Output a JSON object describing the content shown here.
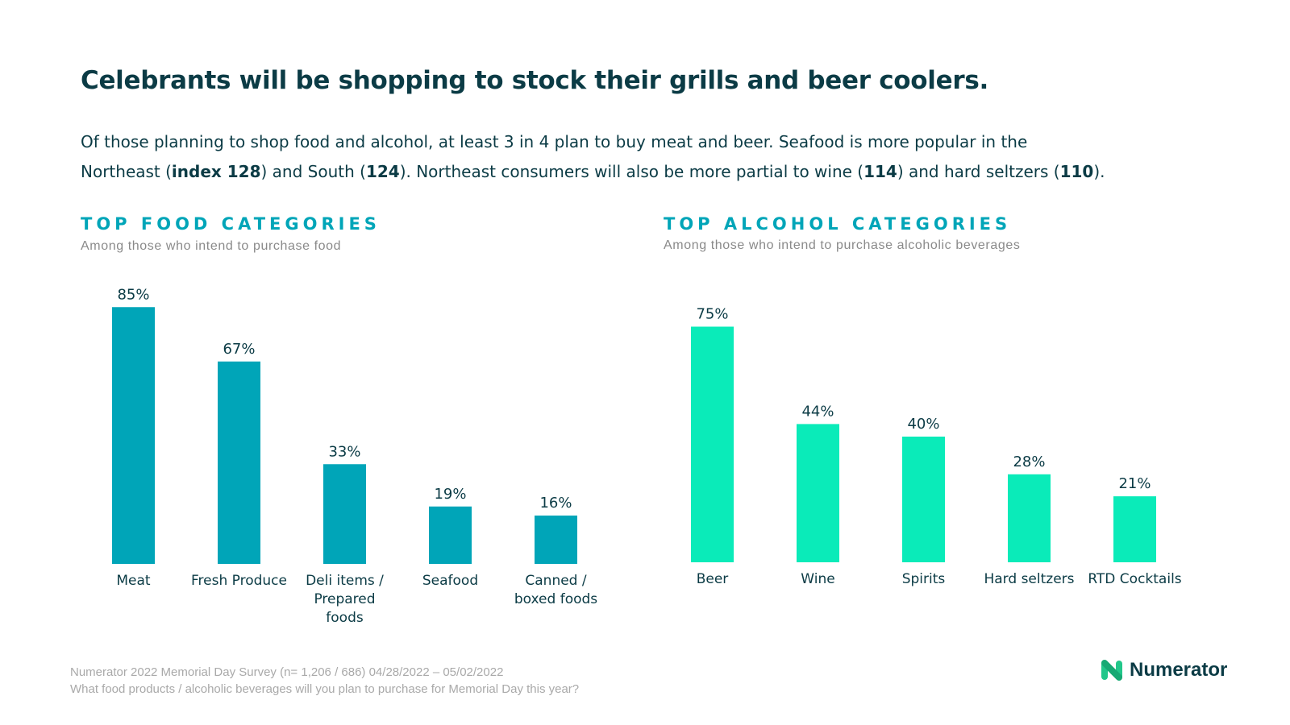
{
  "title": "Celebrants will be shopping to stock their grills and beer coolers.",
  "subtitle": {
    "line1": "Of those planning to shop food and alcohol, at least 3 in 4 plan to buy meat and beer. Seafood is more popular in the",
    "line2_a": "Northeast (",
    "line2_b": "index 128",
    "line2_c": ") and South (",
    "line2_d": "124",
    "line2_e": "). Northeast consumers will also be more partial to wine (",
    "line2_f": "114",
    "line2_g": ") and hard seltzers (",
    "line2_h": "110",
    "line2_i": ")."
  },
  "colors": {
    "food": "#00a5b8",
    "alcohol": "#0aebb9",
    "heading": "#0b3b45"
  },
  "chart_data": [
    {
      "type": "bar",
      "title": "TOP FOOD CATEGORIES",
      "subtitle": "Among those who intend to purchase food",
      "categories": [
        "Meat",
        "Fresh Produce",
        "Deli items / Prepared foods",
        "Seafood",
        "Canned / boxed foods"
      ],
      "category_lines": [
        [
          "Meat"
        ],
        [
          "Fresh Produce"
        ],
        [
          "Deli items /",
          "Prepared",
          "foods"
        ],
        [
          "Seafood"
        ],
        [
          "Canned /",
          "boxed foods"
        ]
      ],
      "values": [
        85,
        67,
        33,
        19,
        16
      ],
      "value_labels": [
        "85%",
        "67%",
        "33%",
        "19%",
        "16%"
      ],
      "unit": "%",
      "ylim": [
        0,
        100
      ],
      "grid": false,
      "color": "#00a5b8"
    },
    {
      "type": "bar",
      "title": "TOP ALCOHOL CATEGORIES",
      "subtitle": "Among those who intend to purchase alcoholic beverages",
      "categories": [
        "Beer",
        "Wine",
        "Spirits",
        "Hard seltzers",
        "RTD Cocktails"
      ],
      "category_lines": [
        [
          "Beer"
        ],
        [
          "Wine"
        ],
        [
          "Spirits"
        ],
        [
          "Hard seltzers"
        ],
        [
          "RTD Cocktails"
        ]
      ],
      "values": [
        75,
        44,
        40,
        28,
        21
      ],
      "value_labels": [
        "75%",
        "44%",
        "40%",
        "28%",
        "21%"
      ],
      "unit": "%",
      "ylim": [
        0,
        100
      ],
      "grid": false,
      "color": "#0aebb9"
    }
  ],
  "footer": {
    "source": "Numerator 2022 Memorial Day Survey (n= 1,206 / 686) 04/28/2022 – 05/02/2022",
    "question": "What food products / alcoholic beverages will you plan to purchase for Memorial Day this year?"
  },
  "brand": {
    "name": "Numerator",
    "icon": "numerator-logo-icon"
  }
}
